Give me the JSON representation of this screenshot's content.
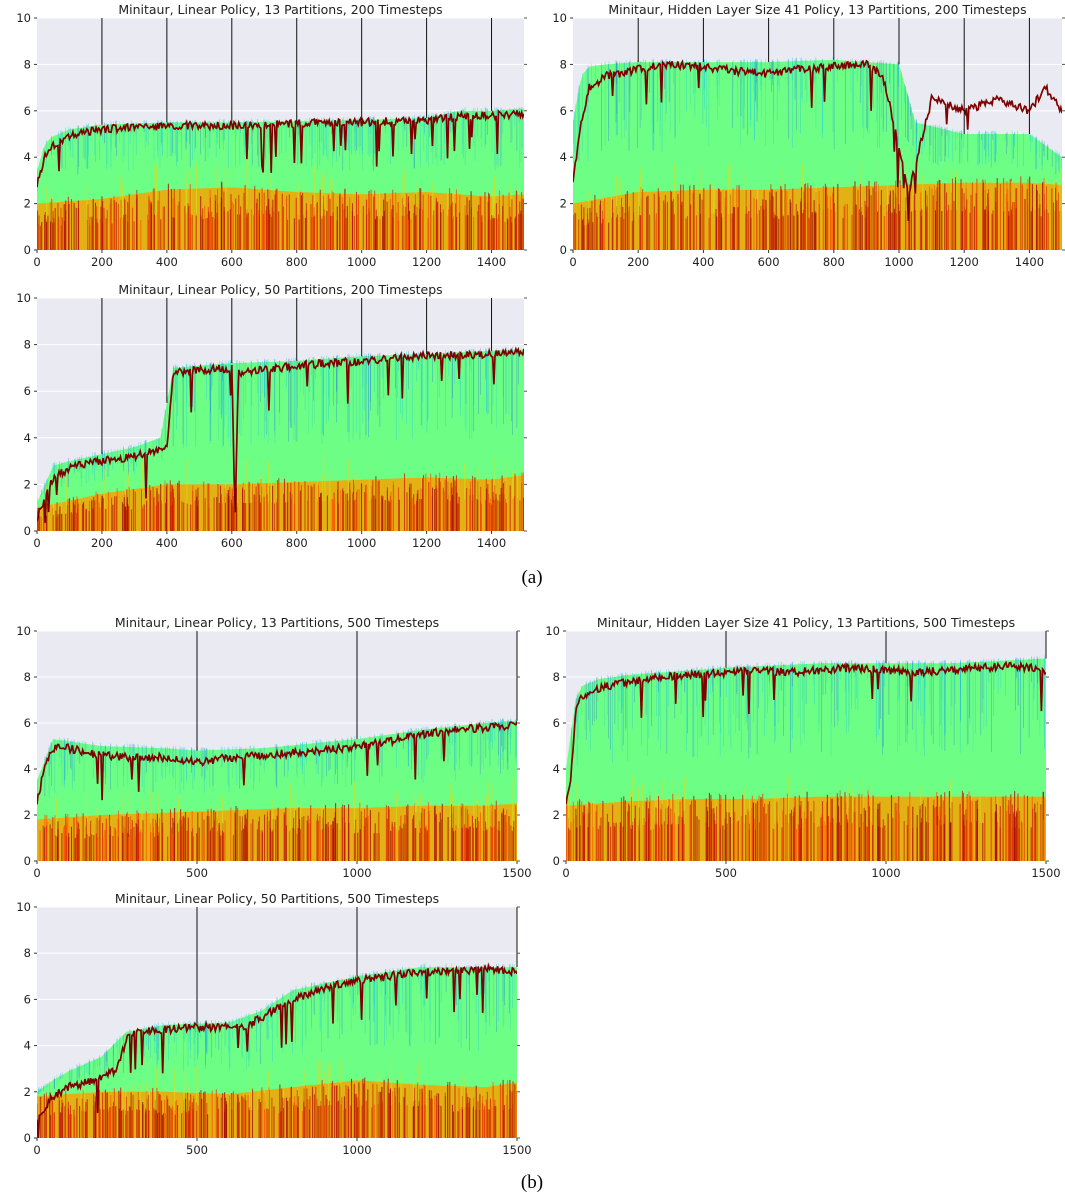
{
  "figure": {
    "captions": [
      "(a)",
      "(b)"
    ]
  },
  "chart_data": [
    {
      "type": "line",
      "title": "Minitaur, Linear Policy, 13 Partitions, 200 Timesteps",
      "xlabel": "",
      "ylabel": "",
      "xlim": [
        0,
        1500
      ],
      "ylim": [
        0,
        10
      ],
      "xticks": [
        0,
        200,
        400,
        600,
        800,
        1000,
        1200,
        1400
      ],
      "yticks": [
        0,
        2,
        4,
        6,
        8,
        10
      ],
      "grid": true,
      "partition_markers": [
        200,
        400,
        600,
        800,
        1000,
        1200,
        1400
      ],
      "series": [
        {
          "role": "best",
          "color": "#7f0000",
          "x": [
            0,
            25,
            50,
            100,
            150,
            200,
            300,
            400,
            500,
            600,
            700,
            800,
            900,
            1000,
            1100,
            1200,
            1300,
            1400,
            1500
          ],
          "values": [
            2.8,
            4.1,
            4.5,
            4.9,
            5.1,
            5.2,
            5.3,
            5.35,
            5.35,
            5.35,
            5.4,
            5.45,
            5.5,
            5.5,
            5.55,
            5.6,
            5.75,
            5.8,
            5.9
          ]
        },
        {
          "role": "envelope",
          "color": "#66ff80",
          "x": [
            0,
            25,
            50,
            100,
            200,
            400,
            600,
            800,
            1000,
            1200,
            1300,
            1400,
            1500
          ],
          "values": [
            3.4,
            4.6,
            4.9,
            5.2,
            5.4,
            5.5,
            5.5,
            5.55,
            5.6,
            5.7,
            6.0,
            6.0,
            6.1
          ]
        },
        {
          "role": "low-band",
          "color": "#e03000",
          "x": [
            0,
            200,
            400,
            600,
            800,
            1000,
            1200,
            1400,
            1500
          ],
          "values": [
            2.0,
            2.2,
            2.6,
            2.7,
            2.5,
            2.4,
            2.5,
            2.3,
            2.4
          ]
        }
      ]
    },
    {
      "type": "line",
      "title": "Minitaur, Hidden Layer Size 41 Policy, 13 Partitions, 200 Timesteps",
      "xlabel": "",
      "ylabel": "",
      "xlim": [
        0,
        1500
      ],
      "ylim": [
        0,
        10
      ],
      "xticks": [
        0,
        200,
        400,
        600,
        800,
        1000,
        1200,
        1400
      ],
      "yticks": [
        0,
        2,
        4,
        6,
        8,
        10
      ],
      "grid": true,
      "partition_markers": [
        200,
        400,
        600,
        800,
        1000,
        1200,
        1400
      ],
      "series": [
        {
          "role": "best",
          "color": "#7f0000",
          "x": [
            0,
            25,
            50,
            100,
            150,
            200,
            300,
            400,
            500,
            600,
            700,
            800,
            900,
            950,
            1000,
            1030,
            1100,
            1200,
            1300,
            1400,
            1450,
            1500
          ],
          "values": [
            3.0,
            5.5,
            7.0,
            7.5,
            7.6,
            7.8,
            8.0,
            7.9,
            7.7,
            7.6,
            7.8,
            7.9,
            8.0,
            7.5,
            4.5,
            2.5,
            6.5,
            6.0,
            6.5,
            6.0,
            7.0,
            6.0
          ]
        },
        {
          "role": "envelope",
          "color": "#66ff80",
          "x": [
            0,
            25,
            50,
            100,
            200,
            400,
            600,
            800,
            1000,
            1050,
            1200,
            1400,
            1500
          ],
          "values": [
            5.5,
            7.5,
            7.9,
            8.0,
            8.1,
            8.1,
            8.1,
            8.2,
            8.0,
            5.5,
            5.0,
            5.0,
            4.0
          ]
        },
        {
          "role": "low-band",
          "color": "#e03000",
          "x": [
            0,
            200,
            400,
            600,
            800,
            1000,
            1200,
            1400,
            1500
          ],
          "values": [
            2.0,
            2.5,
            2.6,
            2.6,
            2.7,
            2.8,
            2.9,
            2.9,
            2.8
          ]
        }
      ]
    },
    {
      "type": "line",
      "title": "Minitaur, Linear Policy, 50 Partitions, 200 Timesteps",
      "xlabel": "",
      "ylabel": "",
      "xlim": [
        0,
        1500
      ],
      "ylim": [
        0,
        10
      ],
      "xticks": [
        0,
        200,
        400,
        600,
        800,
        1000,
        1200,
        1400
      ],
      "yticks": [
        0,
        2,
        4,
        6,
        8,
        10
      ],
      "grid": true,
      "partition_markers": [
        200,
        400,
        600,
        800,
        1000,
        1200,
        1400
      ],
      "series": [
        {
          "role": "best",
          "color": "#7f0000",
          "x": [
            0,
            25,
            50,
            100,
            150,
            200,
            300,
            380,
            400,
            420,
            500,
            600,
            610,
            620,
            700,
            800,
            1000,
            1200,
            1400,
            1500
          ],
          "values": [
            0.5,
            1.5,
            2.3,
            2.7,
            2.9,
            3.0,
            3.2,
            3.5,
            3.5,
            6.8,
            6.9,
            7.0,
            0.3,
            6.8,
            6.9,
            7.1,
            7.3,
            7.5,
            7.6,
            7.7
          ]
        },
        {
          "role": "envelope",
          "color": "#66ff80",
          "x": [
            0,
            50,
            100,
            200,
            300,
            380,
            420,
            500,
            600,
            800,
            1000,
            1200,
            1500
          ],
          "values": [
            1.2,
            2.8,
            3.0,
            3.3,
            3.6,
            4.0,
            7.0,
            7.1,
            7.2,
            7.3,
            7.5,
            7.6,
            7.8
          ]
        },
        {
          "role": "low-band",
          "color": "#e03000",
          "x": [
            0,
            200,
            400,
            600,
            800,
            1000,
            1200,
            1400,
            1500
          ],
          "values": [
            1.0,
            1.6,
            2.0,
            2.0,
            2.1,
            2.2,
            2.3,
            2.2,
            2.4
          ]
        }
      ]
    },
    {
      "type": "line",
      "title": "Minitaur, Linear Policy, 13 Partitions, 500 Timesteps",
      "xlabel": "",
      "ylabel": "",
      "xlim": [
        0,
        1500
      ],
      "ylim": [
        0,
        10
      ],
      "xticks": [
        0,
        500,
        1000,
        1500
      ],
      "yticks": [
        0,
        2,
        4,
        6,
        8,
        10
      ],
      "grid": true,
      "partition_markers": [
        500,
        1000,
        1500
      ],
      "series": [
        {
          "role": "best",
          "color": "#7f0000",
          "x": [
            0,
            25,
            50,
            75,
            100,
            200,
            300,
            400,
            500,
            550,
            600,
            700,
            800,
            900,
            1000,
            1100,
            1200,
            1300,
            1400,
            1500
          ],
          "values": [
            2.5,
            4.2,
            4.9,
            5.0,
            4.9,
            4.6,
            4.5,
            4.5,
            4.3,
            4.4,
            4.5,
            4.6,
            4.7,
            4.8,
            5.0,
            5.2,
            5.5,
            5.7,
            5.8,
            5.9
          ]
        },
        {
          "role": "envelope",
          "color": "#66ff80",
          "x": [
            0,
            50,
            100,
            200,
            400,
            500,
            700,
            1000,
            1200,
            1400,
            1500
          ],
          "values": [
            3.5,
            5.3,
            5.2,
            5.0,
            4.9,
            4.8,
            4.9,
            5.3,
            5.7,
            6.0,
            6.1
          ]
        },
        {
          "role": "low-band",
          "color": "#e03000",
          "x": [
            0,
            200,
            400,
            600,
            800,
            1000,
            1200,
            1400,
            1500
          ],
          "values": [
            1.8,
            2.0,
            2.1,
            2.2,
            2.3,
            2.3,
            2.4,
            2.4,
            2.5
          ]
        }
      ]
    },
    {
      "type": "line",
      "title": "Minitaur, Hidden Layer Size 41 Policy, 13 Partitions, 500 Timesteps",
      "xlabel": "",
      "ylabel": "",
      "xlim": [
        0,
        1500
      ],
      "ylim": [
        0,
        10
      ],
      "xticks": [
        0,
        500,
        1000,
        1500
      ],
      "yticks": [
        0,
        2,
        4,
        6,
        8,
        10
      ],
      "grid": true,
      "partition_markers": [
        500,
        1000,
        1500
      ],
      "series": [
        {
          "role": "best",
          "color": "#7f0000",
          "x": [
            0,
            15,
            30,
            50,
            100,
            200,
            300,
            400,
            500,
            600,
            700,
            800,
            900,
            1000,
            1100,
            1200,
            1300,
            1400,
            1500
          ],
          "values": [
            2.5,
            3.5,
            6.5,
            7.2,
            7.5,
            7.8,
            8.0,
            8.1,
            8.2,
            8.3,
            8.2,
            8.3,
            8.4,
            8.3,
            8.2,
            8.3,
            8.4,
            8.5,
            8.3
          ]
        },
        {
          "role": "envelope",
          "color": "#66ff80",
          "x": [
            0,
            30,
            50,
            100,
            200,
            500,
            800,
            1000,
            1200,
            1500
          ],
          "values": [
            4.0,
            7.0,
            7.6,
            7.9,
            8.1,
            8.4,
            8.6,
            8.6,
            8.6,
            8.8
          ]
        },
        {
          "role": "low-band",
          "color": "#e03000",
          "x": [
            0,
            200,
            400,
            600,
            800,
            1000,
            1200,
            1400,
            1500
          ],
          "values": [
            2.4,
            2.6,
            2.7,
            2.7,
            2.8,
            2.8,
            2.8,
            2.8,
            2.8
          ]
        }
      ]
    },
    {
      "type": "line",
      "title": "Minitaur, Linear Policy, 50 Partitions, 500 Timesteps",
      "xlabel": "",
      "ylabel": "",
      "xlim": [
        0,
        1500
      ],
      "ylim": [
        0,
        10
      ],
      "xticks": [
        0,
        500,
        1000,
        1500
      ],
      "yticks": [
        0,
        2,
        4,
        6,
        8,
        10
      ],
      "grid": true,
      "partition_markers": [
        500,
        1000,
        1500
      ],
      "series": [
        {
          "role": "best",
          "color": "#7f0000",
          "x": [
            0,
            50,
            100,
            200,
            250,
            280,
            300,
            400,
            500,
            600,
            650,
            700,
            800,
            900,
            1000,
            1100,
            1200,
            1300,
            1400,
            1500
          ],
          "values": [
            0.8,
            1.8,
            2.2,
            2.6,
            3.0,
            4.3,
            4.6,
            4.7,
            4.8,
            4.8,
            4.8,
            5.2,
            6.0,
            6.5,
            6.8,
            7.0,
            7.2,
            7.2,
            7.3,
            7.2
          ]
        },
        {
          "role": "envelope",
          "color": "#66ff80",
          "x": [
            0,
            50,
            100,
            200,
            280,
            400,
            600,
            700,
            800,
            1000,
            1200,
            1500
          ],
          "values": [
            2.0,
            2.5,
            2.9,
            3.5,
            4.6,
            4.9,
            5.0,
            5.5,
            6.4,
            7.0,
            7.4,
            7.4
          ]
        },
        {
          "role": "low-band",
          "color": "#e03000",
          "x": [
            0,
            200,
            400,
            600,
            800,
            1000,
            1200,
            1400,
            1500
          ],
          "values": [
            1.8,
            2.0,
            2.0,
            1.9,
            2.2,
            2.5,
            2.3,
            2.2,
            2.4
          ]
        }
      ]
    }
  ]
}
